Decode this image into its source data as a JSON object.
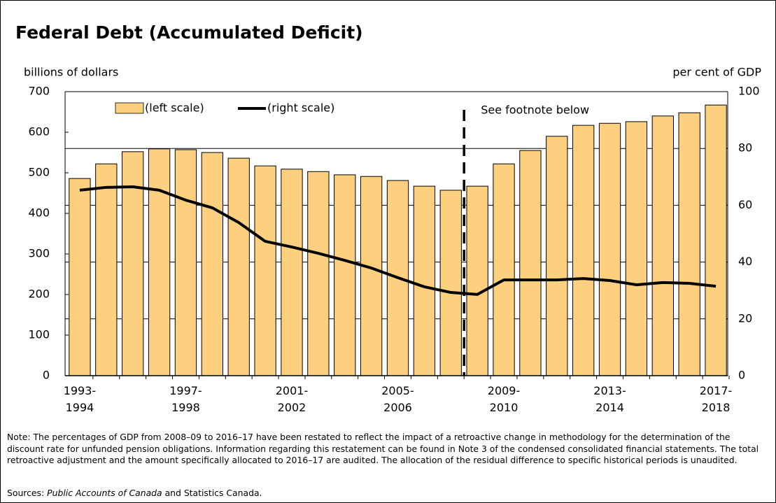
{
  "chart_data": {
    "type": "bar_line",
    "title": "Federal Debt (Accumulated Deficit)",
    "y_label": "billions of dollars",
    "y2_label": "per cent of GDP",
    "annotation": "See footnote below",
    "categories": [
      "1993-\n1994",
      null,
      null,
      null,
      "1997-\n1998",
      null,
      null,
      null,
      "2001-\n2002",
      null,
      null,
      null,
      "2005-\n2006",
      null,
      null,
      null,
      "2009-\n2010",
      null,
      null,
      null,
      "2013-\n2014",
      null,
      null,
      null,
      "2017-\n2018"
    ],
    "series": [
      {
        "name": "(left scale)",
        "type": "bar",
        "color": "#fdd07f",
        "values": [
          486,
          522,
          552,
          559,
          557,
          550,
          536,
          517,
          509,
          503,
          495,
          491,
          481,
          467,
          457,
          467,
          522,
          555,
          590,
          617,
          622,
          626,
          640,
          648,
          667
        ]
      },
      {
        "name": "(right scale)",
        "type": "line",
        "axis": "y2",
        "color": "#000000",
        "values": [
          65.3,
          66.3,
          66.5,
          65.3,
          61.8,
          59.1,
          53.9,
          47.3,
          45.3,
          43.1,
          40.6,
          37.9,
          34.5,
          31.3,
          29.3,
          28.6,
          33.7,
          33.7,
          33.7,
          34.2,
          33.5,
          32.0,
          32.8,
          32.5,
          31.5
        ]
      }
    ],
    "ylim": [
      0,
      700
    ],
    "yticks": [
      0,
      100,
      200,
      300,
      400,
      500,
      600,
      700
    ],
    "y2lim": [
      0,
      100
    ],
    "y2ticks": [
      0,
      20,
      40,
      60,
      80,
      100
    ],
    "grid": true,
    "note": "Note: The percentages of GDP from 2008–09 to 2016–17 have been restated to reflect the impact of a retroactive change in methodology for the determination of the discount rate for unfunded pension obligations. Information regarding this restatement can be found in Note 3 of the condensed consolidated financial statements. The total retroactive adjustment and the amount specifically allocated to 2016–17 are audited. The allocation of the residual difference to specific historical periods is unaudited.",
    "sources": {
      "prefix": "Sources: ",
      "italic": "Public Accounts of Canada",
      "suffix": " and Statistics Canada."
    }
  }
}
